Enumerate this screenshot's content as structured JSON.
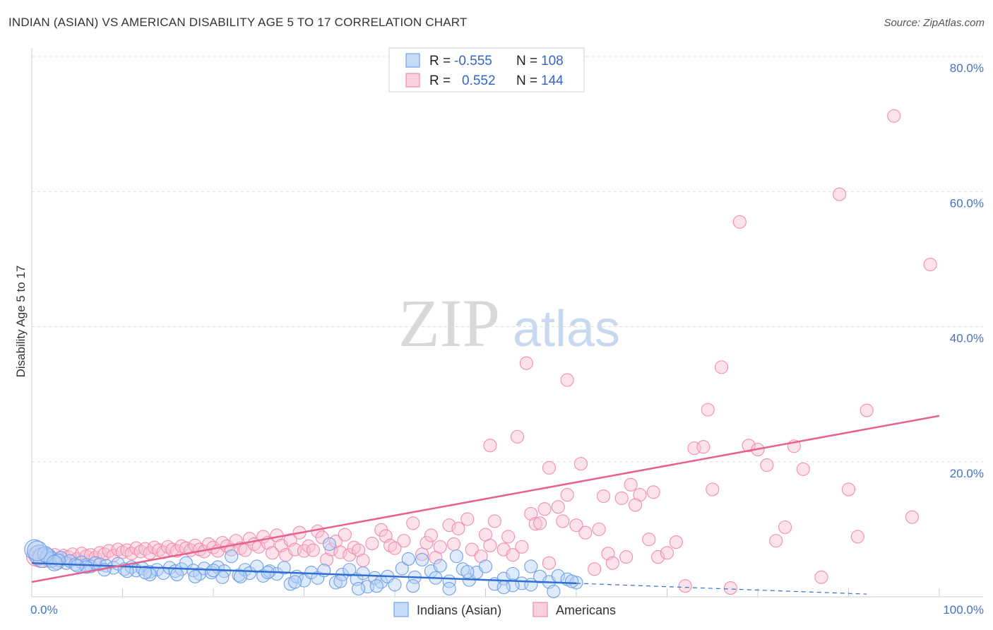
{
  "header": {
    "title": "INDIAN (ASIAN) VS AMERICAN DISABILITY AGE 5 TO 17 CORRELATION CHART",
    "source": "Source: ZipAtlas.com"
  },
  "chart_data": {
    "type": "scatter",
    "title": "INDIAN (ASIAN) VS AMERICAN DISABILITY AGE 5 TO 17 CORRELATION CHART",
    "xlabel": "",
    "ylabel": "Disability Age 5 to 17",
    "xlim": [
      0,
      100
    ],
    "ylim": [
      0,
      80
    ],
    "x_ticks": [
      {
        "value": 0,
        "label": "0.0%"
      },
      {
        "value": 100,
        "label": "100.0%"
      }
    ],
    "y_ticks": [
      {
        "value": 20,
        "label": "20.0%"
      },
      {
        "value": 40,
        "label": "40.0%"
      },
      {
        "value": 60,
        "label": "60.0%"
      },
      {
        "value": 80,
        "label": "80.0%"
      }
    ],
    "watermark": {
      "zip": "ZIP",
      "atlas": "atlas"
    },
    "legend": {
      "r_label": "R =",
      "n_label": "N =",
      "entries": [
        {
          "name": "Indians (Asian)",
          "r": "-0.555",
          "n": "108",
          "color": "#6fa0e8"
        },
        {
          "name": "Americans",
          "r": "0.552",
          "n": "144",
          "color": "#f08cac"
        }
      ]
    },
    "series": [
      {
        "name": "Indians (Asian)",
        "color": "#6fa0e8",
        "trend": {
          "x0": 0,
          "y0": 5.0,
          "x1": 60,
          "y1": 2.0,
          "dash_to_x": 92,
          "dash_to_y": 0.4
        },
        "points": [
          [
            0.3,
            7.0
          ],
          [
            0.8,
            6.2
          ],
          [
            1.2,
            5.8
          ],
          [
            1.8,
            6.0
          ],
          [
            2.2,
            5.5
          ],
          [
            2.8,
            5.2
          ],
          [
            3.2,
            5.8
          ],
          [
            3.8,
            5.0
          ],
          [
            4.2,
            5.3
          ],
          [
            4.8,
            4.8
          ],
          [
            5.5,
            5.1
          ],
          [
            6.0,
            4.7
          ],
          [
            6.5,
            4.5
          ],
          [
            7.0,
            5.0
          ],
          [
            7.5,
            4.8
          ],
          [
            8.2,
            4.6
          ],
          [
            9.0,
            4.3
          ],
          [
            9.5,
            4.9
          ],
          [
            10.2,
            4.1
          ],
          [
            11.0,
            4.4
          ],
          [
            11.5,
            3.9
          ],
          [
            12.2,
            4.2
          ],
          [
            13.0,
            3.7
          ],
          [
            13.8,
            4.0
          ],
          [
            14.5,
            3.5
          ],
          [
            15.2,
            4.3
          ],
          [
            15.8,
            3.8
          ],
          [
            16.5,
            4.1
          ],
          [
            17.0,
            5.0
          ],
          [
            17.8,
            3.9
          ],
          [
            18.5,
            3.4
          ],
          [
            19.0,
            4.2
          ],
          [
            19.8,
            3.6
          ],
          [
            20.5,
            4.4
          ],
          [
            21.2,
            3.8
          ],
          [
            22.0,
            6.0
          ],
          [
            22.8,
            3.2
          ],
          [
            23.5,
            4.0
          ],
          [
            24.0,
            3.5
          ],
          [
            24.8,
            4.5
          ],
          [
            25.5,
            3.1
          ],
          [
            26.2,
            3.8
          ],
          [
            27.0,
            3.4
          ],
          [
            27.8,
            4.3
          ],
          [
            28.5,
            1.9
          ],
          [
            29.2,
            3.0
          ],
          [
            30.0,
            2.4
          ],
          [
            30.8,
            3.6
          ],
          [
            31.5,
            2.8
          ],
          [
            32.2,
            3.9
          ],
          [
            32.8,
            7.8
          ],
          [
            33.5,
            2.1
          ],
          [
            34.2,
            3.3
          ],
          [
            35.0,
            4.0
          ],
          [
            35.8,
            2.6
          ],
          [
            36.5,
            3.5
          ],
          [
            37.0,
            1.5
          ],
          [
            37.8,
            2.8
          ],
          [
            38.5,
            2.2
          ],
          [
            39.2,
            3.0
          ],
          [
            40.0,
            1.8
          ],
          [
            40.8,
            4.2
          ],
          [
            41.5,
            5.6
          ],
          [
            42.2,
            2.9
          ],
          [
            43.0,
            5.5
          ],
          [
            44.0,
            3.8
          ],
          [
            45.0,
            4.6
          ],
          [
            46.0,
            2.3
          ],
          [
            46.8,
            6.0
          ],
          [
            47.5,
            4.1
          ],
          [
            48.2,
            2.5
          ],
          [
            49.0,
            3.6
          ],
          [
            50.0,
            4.5
          ],
          [
            51.0,
            1.9
          ],
          [
            52.0,
            2.7
          ],
          [
            53.0,
            3.4
          ],
          [
            54.0,
            2.0
          ],
          [
            55.0,
            4.5
          ],
          [
            56.0,
            3.0
          ],
          [
            57.0,
            2.2
          ],
          [
            58.0,
            3.1
          ],
          [
            59.0,
            2.6
          ],
          [
            60.0,
            2.1
          ],
          [
            53.0,
            1.7
          ],
          [
            46.0,
            1.2
          ],
          [
            38.0,
            1.6
          ],
          [
            29.0,
            2.2
          ],
          [
            21.0,
            2.9
          ],
          [
            13.0,
            3.3
          ],
          [
            6.0,
            4.4
          ],
          [
            3.0,
            5.4
          ],
          [
            1.5,
            6.3
          ],
          [
            0.6,
            6.8
          ],
          [
            2.5,
            5.0
          ],
          [
            5.0,
            4.6
          ],
          [
            8.0,
            4.0
          ],
          [
            10.5,
            3.8
          ],
          [
            12.5,
            3.6
          ],
          [
            16.0,
            3.3
          ],
          [
            18.0,
            3.0
          ],
          [
            20.0,
            3.9
          ],
          [
            23.0,
            3.0
          ],
          [
            26.0,
            3.6
          ],
          [
            34.0,
            2.3
          ],
          [
            36.0,
            1.2
          ],
          [
            42.0,
            1.6
          ],
          [
            44.5,
            2.8
          ],
          [
            48.0,
            3.7
          ],
          [
            52.0,
            1.4
          ],
          [
            55.0,
            1.8
          ],
          [
            57.5,
            0.8
          ],
          [
            59.5,
            2.3
          ]
        ]
      },
      {
        "name": "Americans",
        "color": "#f08cac",
        "trend": {
          "x0": 0,
          "y0": 2.2,
          "x1": 100,
          "y1": 26.8
        },
        "points": [
          [
            0.5,
            6.0
          ],
          [
            1.0,
            5.8
          ],
          [
            1.5,
            6.2
          ],
          [
            2.0,
            5.5
          ],
          [
            2.5,
            6.0
          ],
          [
            3.0,
            5.7
          ],
          [
            3.5,
            6.1
          ],
          [
            4.0,
            5.9
          ],
          [
            4.5,
            6.3
          ],
          [
            5.0,
            5.6
          ],
          [
            5.5,
            6.4
          ],
          [
            6.0,
            6.0
          ],
          [
            6.5,
            6.2
          ],
          [
            7.0,
            5.8
          ],
          [
            7.5,
            6.5
          ],
          [
            8.0,
            6.3
          ],
          [
            8.5,
            6.8
          ],
          [
            9.0,
            6.1
          ],
          [
            9.5,
            7.0
          ],
          [
            10.0,
            6.6
          ],
          [
            10.5,
            6.9
          ],
          [
            11.0,
            6.4
          ],
          [
            11.5,
            7.2
          ],
          [
            12.0,
            6.7
          ],
          [
            12.5,
            7.1
          ],
          [
            13.0,
            6.5
          ],
          [
            13.5,
            7.3
          ],
          [
            14.0,
            6.9
          ],
          [
            14.5,
            6.6
          ],
          [
            15.0,
            7.4
          ],
          [
            15.5,
            7.0
          ],
          [
            16.0,
            6.8
          ],
          [
            16.5,
            7.5
          ],
          [
            17.0,
            7.2
          ],
          [
            17.5,
            6.9
          ],
          [
            18.0,
            7.6
          ],
          [
            18.5,
            7.0
          ],
          [
            19.0,
            6.7
          ],
          [
            19.5,
            7.8
          ],
          [
            20.0,
            7.3
          ],
          [
            20.5,
            6.8
          ],
          [
            21.0,
            8.0
          ],
          [
            21.5,
            7.5
          ],
          [
            22.0,
            7.0
          ],
          [
            22.5,
            8.3
          ],
          [
            23.0,
            7.2
          ],
          [
            23.5,
            6.9
          ],
          [
            24.0,
            8.6
          ],
          [
            24.5,
            7.8
          ],
          [
            25.0,
            7.4
          ],
          [
            25.5,
            8.9
          ],
          [
            26.0,
            8.0
          ],
          [
            26.5,
            6.5
          ],
          [
            27.0,
            9.1
          ],
          [
            27.5,
            7.6
          ],
          [
            28.0,
            6.2
          ],
          [
            28.5,
            8.4
          ],
          [
            29.0,
            7.0
          ],
          [
            29.5,
            9.5
          ],
          [
            30.0,
            6.8
          ],
          [
            30.5,
            7.5
          ],
          [
            31.0,
            6.9
          ],
          [
            31.5,
            9.7
          ],
          [
            32.0,
            8.8
          ],
          [
            32.5,
            5.5
          ],
          [
            33.0,
            7.0
          ],
          [
            33.5,
            8.2
          ],
          [
            34.0,
            6.6
          ],
          [
            34.5,
            9.2
          ],
          [
            35.0,
            6.2
          ],
          [
            35.5,
            7.3
          ],
          [
            36.0,
            6.9
          ],
          [
            36.5,
            5.4
          ],
          [
            37.5,
            7.9
          ],
          [
            38.5,
            9.9
          ],
          [
            39.0,
            9.0
          ],
          [
            39.5,
            7.6
          ],
          [
            40.0,
            7.2
          ],
          [
            41.0,
            8.3
          ],
          [
            42.0,
            10.9
          ],
          [
            43.0,
            6.3
          ],
          [
            43.5,
            8.0
          ],
          [
            44.0,
            9.1
          ],
          [
            44.5,
            5.8
          ],
          [
            45.0,
            7.4
          ],
          [
            46.0,
            10.6
          ],
          [
            46.5,
            7.8
          ],
          [
            47.0,
            10.1
          ],
          [
            48.0,
            11.5
          ],
          [
            48.5,
            7.0
          ],
          [
            49.5,
            6.0
          ],
          [
            50.0,
            9.2
          ],
          [
            50.5,
            7.6
          ],
          [
            51.0,
            11.2
          ],
          [
            52.0,
            7.0
          ],
          [
            52.5,
            8.9
          ],
          [
            53.0,
            6.2
          ],
          [
            54.0,
            7.4
          ],
          [
            55.0,
            12.3
          ],
          [
            55.5,
            10.8
          ],
          [
            56.0,
            10.9
          ],
          [
            57.0,
            5.0
          ],
          [
            58.0,
            13.3
          ],
          [
            59.0,
            15.1
          ],
          [
            60.0,
            10.6
          ],
          [
            61.0,
            9.5
          ],
          [
            62.0,
            4.1
          ],
          [
            63.0,
            14.9
          ],
          [
            63.5,
            6.4
          ],
          [
            64.0,
            5.0
          ],
          [
            65.0,
            14.6
          ],
          [
            65.5,
            5.9
          ],
          [
            66.0,
            16.6
          ],
          [
            67.0,
            15.1
          ],
          [
            68.0,
            8.5
          ],
          [
            69.0,
            5.9
          ],
          [
            70.0,
            6.5
          ],
          [
            71.0,
            8.1
          ],
          [
            72.0,
            1.6
          ],
          [
            73.0,
            22.0
          ],
          [
            74.0,
            22.2
          ],
          [
            74.5,
            27.7
          ],
          [
            75.0,
            15.9
          ],
          [
            76.0,
            34.0
          ],
          [
            77.0,
            1.3
          ],
          [
            78.0,
            55.5
          ],
          [
            79.0,
            22.4
          ],
          [
            80.0,
            21.8
          ],
          [
            81.0,
            19.5
          ],
          [
            82.0,
            8.3
          ],
          [
            83.0,
            10.3
          ],
          [
            84.0,
            22.3
          ],
          [
            85.0,
            18.9
          ],
          [
            87.0,
            2.9
          ],
          [
            89.0,
            59.6
          ],
          [
            90.0,
            15.9
          ],
          [
            91.0,
            8.9
          ],
          [
            92.0,
            27.6
          ],
          [
            95.0,
            71.2
          ],
          [
            97.0,
            11.8
          ],
          [
            99.0,
            49.2
          ],
          [
            54.5,
            34.6
          ],
          [
            59.0,
            32.1
          ],
          [
            50.5,
            22.4
          ],
          [
            53.5,
            23.7
          ],
          [
            57.0,
            19.1
          ],
          [
            56.5,
            13.0
          ],
          [
            58.5,
            11.2
          ],
          [
            62.5,
            10.0
          ],
          [
            66.5,
            13.6
          ],
          [
            68.5,
            15.5
          ],
          [
            60.5,
            19.7
          ]
        ]
      }
    ]
  }
}
